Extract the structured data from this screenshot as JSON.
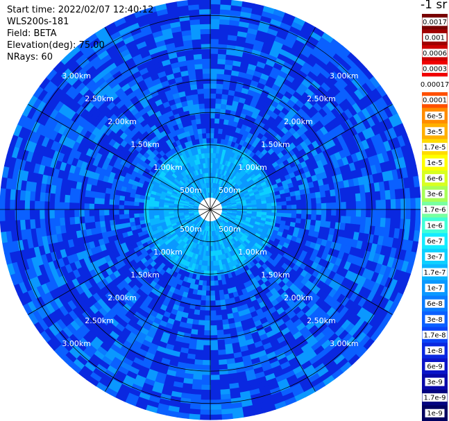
{
  "header": {
    "start_time": "Start time: 2022/02/07 12:40:12",
    "device": "WLS200s-181",
    "field": "Field: BETA",
    "elevation": "Elevation(deg): 75.00",
    "nrays": "NRays: 60"
  },
  "chart_data": {
    "type": "heatmap",
    "projection": "polar (PPI)",
    "grid": true,
    "range_rings": [
      "500m",
      "1.00km",
      "1.50km",
      "2.00km",
      "2.50km",
      "3.00km"
    ],
    "range_km": [
      0.5,
      1.0,
      1.5,
      2.0,
      2.5,
      3.0
    ],
    "max_range_km": 3.25,
    "n_rays": 60,
    "colorbar": {
      "title": "-1 sr",
      "ticks": [
        "0.0017",
        "0.001",
        "0.0006",
        "0.0003",
        "0.00017",
        "0.0001",
        "6e-5",
        "3e-5",
        "1.7e-5",
        "1e-5",
        "6e-6",
        "3e-6",
        "1.7e-6",
        "1e-6",
        "6e-7",
        "3e-7",
        "1.7e-7",
        "1e-7",
        "6e-8",
        "3e-8",
        "1.7e-8",
        "1e-8",
        "6e-9",
        "3e-9",
        "1.7e-9",
        "1e-9"
      ],
      "colors": [
        "#780000",
        "#a00000",
        "#cc0000",
        "#f00000",
        "#ffffff",
        "#ff5000",
        "#ff8c00",
        "#ffb000",
        "#ffdc00",
        "#ffff00",
        "#d8ff20",
        "#a8ff58",
        "#78ffa0",
        "#40ffd8",
        "#14ecff",
        "#0cd0ff",
        "#0ab4ff",
        "#0a98ff",
        "#0a7cff",
        "#0a60ff",
        "#0a44f8",
        "#0a28e0",
        "#0a14c8",
        "#0808a8",
        "#040480",
        "#000060"
      ]
    },
    "dominant_levels": [
      "1e-8",
      "3e-8",
      "1e-7",
      "6e-8"
    ],
    "near_range_levels": [
      "1e-7",
      "1.7e-7",
      "3e-7"
    ]
  }
}
